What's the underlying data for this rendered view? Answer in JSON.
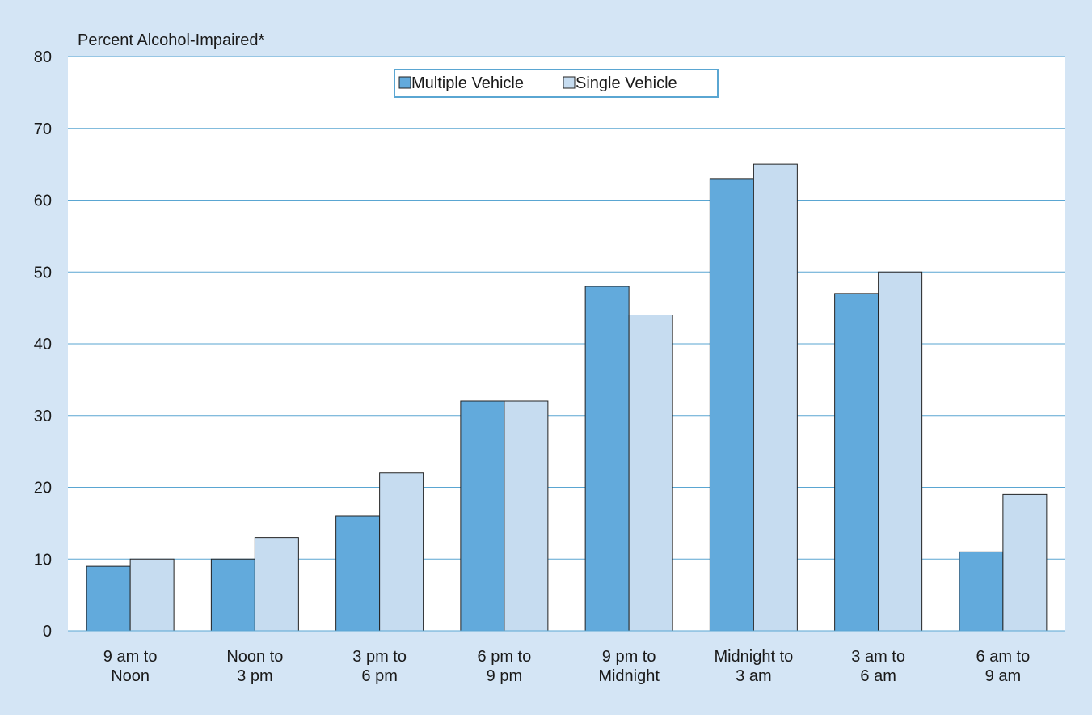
{
  "chart_data": {
    "type": "bar",
    "ylabel": "Percent Alcohol-Impaired*",
    "ylim": [
      0,
      80
    ],
    "yticks": [
      0,
      10,
      20,
      30,
      40,
      50,
      60,
      70,
      80
    ],
    "grid": true,
    "legend_position": "top-center",
    "categories": [
      [
        "9 am to",
        "Noon"
      ],
      [
        "Noon to",
        "3 pm"
      ],
      [
        "3 pm to",
        "6 pm"
      ],
      [
        "6 pm to",
        "9 pm"
      ],
      [
        "9 pm to",
        "Midnight"
      ],
      [
        "Midnight to",
        "3 am"
      ],
      [
        "3 am to",
        "6 am"
      ],
      [
        "6 am to",
        "9 am"
      ]
    ],
    "series": [
      {
        "name": "Multiple Vehicle",
        "color": "#62aadc",
        "values": [
          9,
          10,
          16,
          32,
          48,
          63,
          47,
          11
        ]
      },
      {
        "name": "Single Vehicle",
        "color": "#c6dcf0",
        "values": [
          10,
          13,
          22,
          32,
          44,
          65,
          50,
          19
        ]
      }
    ],
    "colors": {
      "background": "#d4e5f5",
      "plot": "#ffffff",
      "grid": "#5aa6d2",
      "bar_stroke": "#222222"
    }
  }
}
